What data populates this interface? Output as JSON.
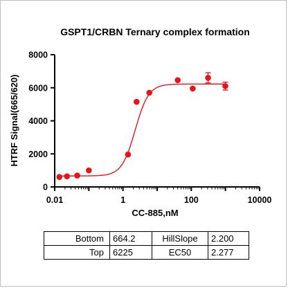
{
  "chart_data": {
    "type": "scatter",
    "title": "GSPT1/CRBN Ternary complex formation",
    "xlabel": "CC-885,nM",
    "ylabel": "HTRF Signal(665/620)",
    "x_scale": "log",
    "xlim": [
      0.01,
      10000
    ],
    "ylim": [
      0,
      8000
    ],
    "x_ticks": [
      "0.01",
      "1",
      "100",
      "10000"
    ],
    "y_ticks": [
      "0",
      "2000",
      "4000",
      "6000",
      "8000"
    ],
    "grid": false,
    "marker_color": "#e8141b",
    "fit": {
      "model": "four-parameter logistic",
      "bottom": 664.2,
      "top": 6225,
      "hillslope": 2.2,
      "ec50": 2.277
    },
    "points": [
      {
        "x": 0.0137,
        "y": 600,
        "err": 0
      },
      {
        "x": 0.0229,
        "y": 640,
        "err": 0
      },
      {
        "x": 0.0457,
        "y": 690,
        "err": 0
      },
      {
        "x": 0.1,
        "y": 1000,
        "err": 0
      },
      {
        "x": 1.4,
        "y": 1960,
        "err": 0
      },
      {
        "x": 2.5,
        "y": 5150,
        "err": 0
      },
      {
        "x": 5.9,
        "y": 5700,
        "err": 0
      },
      {
        "x": 40,
        "y": 6460,
        "err": 0
      },
      {
        "x": 110,
        "y": 5950,
        "err": 0
      },
      {
        "x": 310,
        "y": 6600,
        "err": 310
      },
      {
        "x": 990,
        "y": 6100,
        "err": 240
      }
    ]
  },
  "params": {
    "rows": [
      {
        "label1": "Bottom",
        "value1": "664.2",
        "label2": "HillSlope",
        "value2": "2.200"
      },
      {
        "label1": "Top",
        "value1": "6225",
        "label2": "EC50",
        "value2": "2.277"
      }
    ]
  }
}
